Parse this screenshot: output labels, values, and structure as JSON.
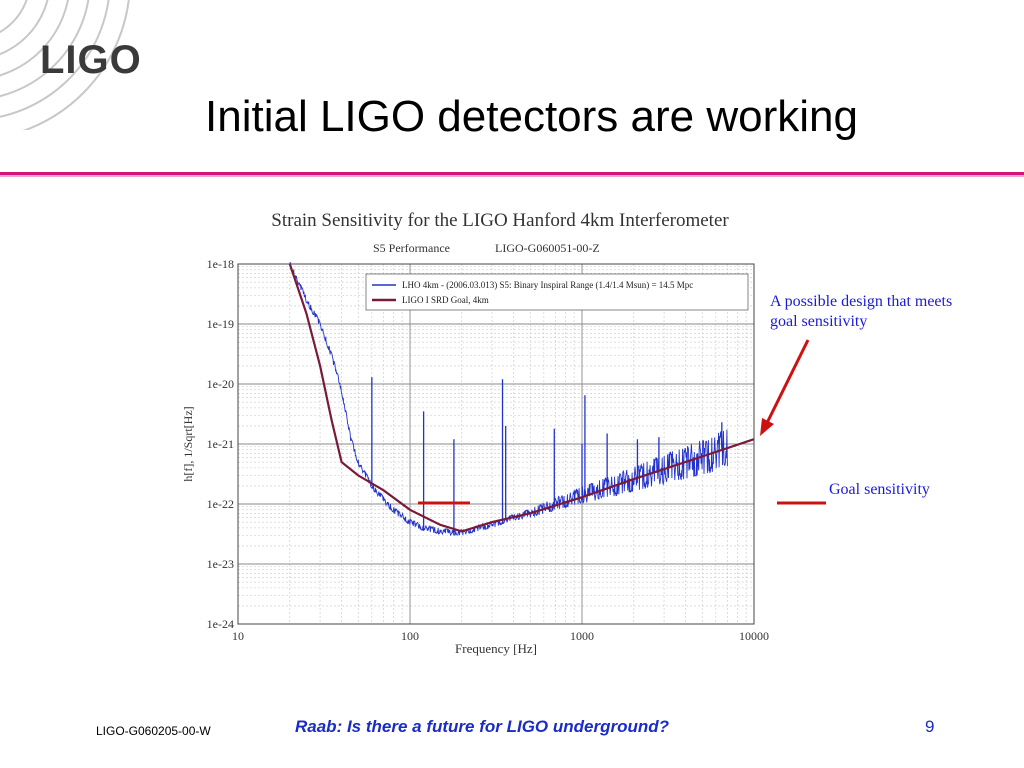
{
  "slide": {
    "logo": "LIGO",
    "title": "Initial LIGO detectors are working",
    "accent_color": "#d4147a"
  },
  "annotations": {
    "design": "A possible design that meets goal sensitivity",
    "goal": "Goal sensitivity",
    "color": "#1a1adb",
    "marker_color": "#cc1111"
  },
  "footer": {
    "doc_id": "LIGO-G060205-00-W",
    "talk": "Raab: Is there a future for LIGO underground?",
    "page": "9"
  },
  "chart_data": {
    "type": "line",
    "title": "Strain Sensitivity for the LIGO Hanford 4km Interferometer",
    "subtitle_left": "S5 Performance",
    "subtitle_right": "LIGO-G060051-00-Z",
    "xlabel": "Frequency [Hz]",
    "ylabel": "h[f], 1/Sqrt[Hz]",
    "xscale": "log",
    "yscale": "log",
    "xlim": [
      10,
      10000
    ],
    "ylim": [
      1e-24,
      1e-18
    ],
    "grid": true,
    "legend_position": "top-right",
    "x_tick_labels": [
      "10",
      "100",
      "1000",
      "10000"
    ],
    "y_tick_labels": [
      "1e-18",
      "1e-19",
      "1e-20",
      "1e-21",
      "1e-22",
      "1e-23",
      "1e-24"
    ],
    "series": [
      {
        "name": "LHO 4km - (2006.03.013) S5: Binary Inspiral Range (1.4/1.4 Msun) = 14.5 Mpc",
        "color": "#2233cc",
        "x": [
          20,
          25,
          30,
          35,
          40,
          45,
          50,
          60,
          70,
          80,
          100,
          120,
          150,
          200,
          250,
          300,
          400,
          500,
          700,
          1000,
          1500,
          2000,
          3000,
          5000,
          7000
        ],
        "y": [
          1e-18,
          2.5e-19,
          1e-19,
          3e-20,
          8e-21,
          1.3e-21,
          5e-22,
          2e-22,
          1.2e-22,
          8e-23,
          5e-23,
          4e-23,
          3.5e-23,
          3.3e-23,
          4e-23,
          4.5e-23,
          6e-23,
          7e-23,
          1e-22,
          1.4e-22,
          2e-22,
          2.6e-22,
          3.8e-22,
          6e-22,
          8.5e-22
        ],
        "lines": [
          {
            "x": 60,
            "y": 1.3e-20
          },
          {
            "x": 120,
            "y": 3.5e-21
          },
          {
            "x": 180,
            "y": 1.2e-21
          },
          {
            "x": 345,
            "y": 1.2e-20
          },
          {
            "x": 360,
            "y": 2e-21
          },
          {
            "x": 690,
            "y": 1.8e-21
          },
          {
            "x": 1000,
            "y": 1e-21
          },
          {
            "x": 1040,
            "y": 6.5e-21
          },
          {
            "x": 1400,
            "y": 1.5e-21
          },
          {
            "x": 2100,
            "y": 1.2e-21
          },
          {
            "x": 2800,
            "y": 1.3e-21
          },
          {
            "x": 6500,
            "y": 2.3e-21
          }
        ]
      },
      {
        "name": "LIGO I SRD Goal, 4km",
        "color": "#7a1a3a",
        "x": [
          20,
          25,
          30,
          35,
          40,
          50,
          70,
          100,
          150,
          200,
          300,
          500,
          1000,
          2000,
          5000,
          10000
        ],
        "y": [
          1e-18,
          1.5e-19,
          2e-20,
          2.5e-21,
          5e-22,
          3e-22,
          1.7e-22,
          8e-23,
          4.5e-23,
          3.5e-23,
          5e-23,
          7e-23,
          1.3e-22,
          2.6e-22,
          6.2e-22,
          1.2e-21
        ]
      }
    ]
  }
}
